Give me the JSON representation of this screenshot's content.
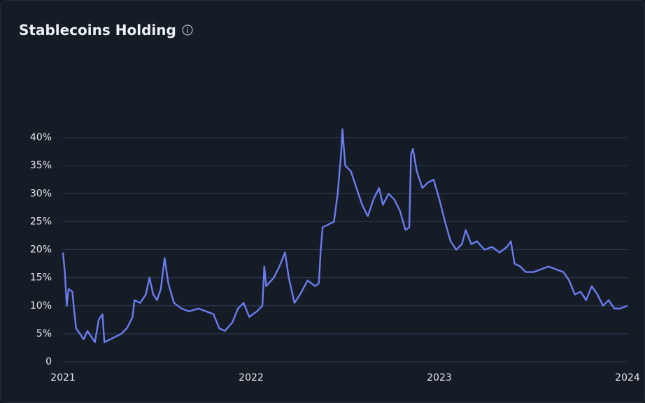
{
  "chart_data": {
    "type": "line",
    "title": "Stablecoins Holding",
    "color": "#6b7cf0",
    "xlim": [
      2021,
      2024
    ],
    "xticks": [
      2021,
      2022,
      2023,
      2024
    ],
    "ylim": [
      0,
      40
    ],
    "yticks": [
      0,
      {
        "value": 5,
        "label": "5%"
      },
      {
        "value": 10,
        "label": "10%"
      },
      {
        "value": 15,
        "label": "15%"
      },
      {
        "value": 20,
        "label": "20%"
      },
      {
        "value": 25,
        "label": "25%"
      },
      {
        "value": 30,
        "label": "30%"
      },
      {
        "value": 35,
        "label": "35%"
      },
      {
        "value": 40,
        "label": "40%"
      }
    ],
    "grid": true,
    "x": [
      2021.0,
      2021.01,
      2021.02,
      2021.03,
      2021.05,
      2021.06,
      2021.07,
      2021.09,
      2021.11,
      2021.13,
      2021.15,
      2021.17,
      2021.19,
      2021.21,
      2021.22,
      2021.25,
      2021.28,
      2021.31,
      2021.34,
      2021.37,
      2021.38,
      2021.41,
      2021.44,
      2021.46,
      2021.48,
      2021.5,
      2021.52,
      2021.54,
      2021.56,
      2021.59,
      2021.63,
      2021.67,
      2021.72,
      2021.76,
      2021.8,
      2021.83,
      2021.86,
      2021.9,
      2021.93,
      2021.96,
      2021.99,
      2022.03,
      2022.06,
      2022.07,
      2022.08,
      2022.12,
      2022.15,
      2022.18,
      2022.2,
      2022.23,
      2022.26,
      2022.3,
      2022.34,
      2022.36,
      2022.37,
      2022.38,
      2022.41,
      2022.44,
      2022.46,
      2022.48,
      2022.485,
      2022.5,
      2022.53,
      2022.56,
      2022.59,
      2022.62,
      2022.65,
      2022.68,
      2022.7,
      2022.73,
      2022.76,
      2022.79,
      2022.82,
      2022.84,
      2022.85,
      2022.86,
      2022.88,
      2022.91,
      2022.94,
      2022.97,
      2023.0,
      2023.03,
      2023.06,
      2023.09,
      2023.12,
      2023.14,
      2023.17,
      2023.2,
      2023.24,
      2023.28,
      2023.32,
      2023.36,
      2023.38,
      2023.4,
      2023.43,
      2023.46,
      2023.5,
      2023.54,
      2023.58,
      2023.62,
      2023.66,
      2023.69,
      2023.72,
      2023.75,
      2023.78,
      2023.81,
      2023.84,
      2023.87,
      2023.9,
      2023.93,
      2023.96,
      2024.0
    ],
    "values": [
      19.5,
      16,
      10,
      13,
      12.5,
      9,
      6,
      5,
      4,
      5.5,
      4.5,
      3.5,
      7.5,
      8.5,
      3.5,
      4,
      4.5,
      5,
      6,
      8,
      11,
      10.5,
      12,
      15,
      12,
      11,
      13,
      18.5,
      14,
      10.5,
      9.5,
      9,
      9.5,
      9,
      8.5,
      6,
      5.5,
      7,
      9.5,
      10.5,
      8,
      9,
      10,
      17,
      13.5,
      15,
      17,
      19.5,
      15,
      10.5,
      12,
      14.5,
      13.5,
      14,
      20,
      24,
      24.5,
      25,
      30,
      38,
      41.5,
      35,
      34,
      31,
      28,
      26,
      29,
      31,
      28,
      30,
      29,
      27,
      23.5,
      24,
      37,
      38,
      34,
      31,
      32,
      32.5,
      29,
      25,
      21.5,
      20,
      21,
      23.5,
      21,
      21.5,
      20,
      20.5,
      19.5,
      20.5,
      21.5,
      17.5,
      17,
      16,
      16,
      16.5,
      17,
      16.5,
      16,
      14.5,
      12,
      12.5,
      11,
      13.5,
      12,
      10,
      11,
      9.5,
      9.5,
      10
    ]
  }
}
